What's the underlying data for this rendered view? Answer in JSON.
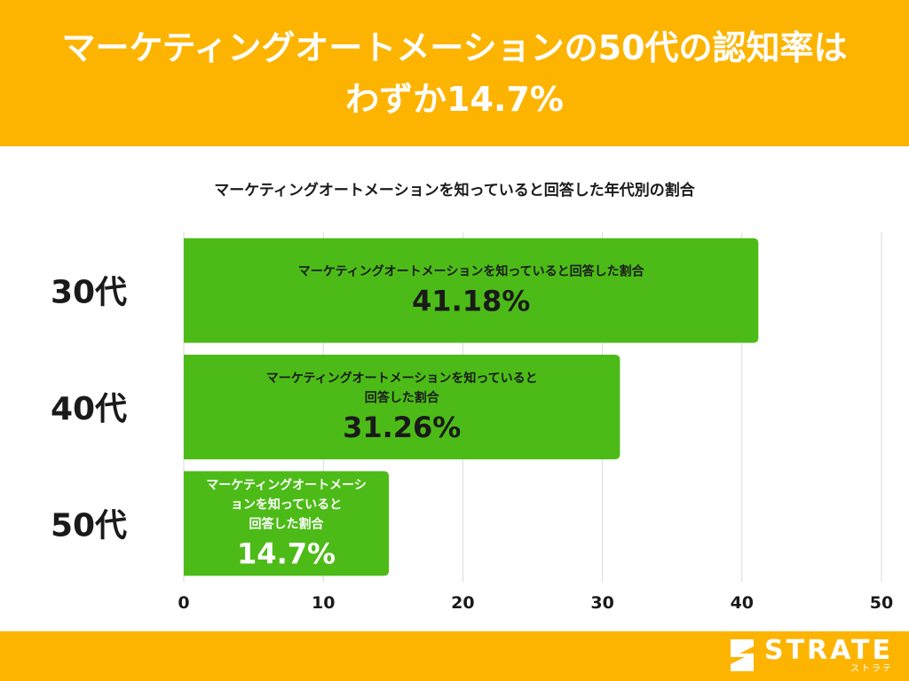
{
  "header": {
    "title_line1": "マーケティングオートメーションの50代の認知率は",
    "title_line2": "わずか14.7%"
  },
  "chart_data": {
    "type": "bar",
    "orientation": "horizontal",
    "title": "マーケティングオートメーションを知っていると回答した年代別の割合",
    "categories": [
      "30代",
      "40代",
      "50代"
    ],
    "values": [
      41.18,
      31.26,
      14.7
    ],
    "value_labels": [
      "41.18%",
      "31.26%",
      "14.7%"
    ],
    "series_name": "マーケティングオートメーションを知っていると回答した割合",
    "series_name_lines": [
      [
        "マーケティングオートメーションを知っていると回答した割合"
      ],
      [
        "マーケティングオートメーションを知っていると",
        "回答した割合"
      ],
      [
        "マーケティングオートメーシ",
        "ョンを知っていると",
        "回答した割合"
      ]
    ],
    "xlim": [
      0,
      50
    ],
    "xticks": [
      0,
      10,
      20,
      30,
      40,
      50
    ],
    "grid": true,
    "bar_color": "#4CBB17"
  },
  "footer": {
    "logo_main": "STRATE",
    "logo_sub": "ストラテ"
  },
  "colors": {
    "accent": "#FDB400",
    "bar": "#4CBB17",
    "grid": "#d9d9d9"
  }
}
